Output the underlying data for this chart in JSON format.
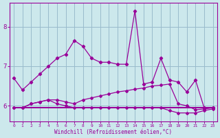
{
  "x": [
    0,
    1,
    2,
    3,
    4,
    5,
    6,
    7,
    8,
    9,
    10,
    11,
    12,
    13,
    14,
    15,
    16,
    17,
    18,
    19,
    20,
    21,
    22,
    23
  ],
  "line1": [
    6.7,
    6.4,
    6.6,
    6.8,
    7.0,
    7.2,
    7.3,
    7.65,
    7.5,
    7.2,
    7.1,
    7.1,
    7.05,
    7.05,
    8.4,
    6.55,
    6.6,
    7.2,
    6.65,
    6.6,
    6.35,
    6.65,
    5.95,
    5.95
  ],
  "line2": [
    5.95,
    5.95,
    6.05,
    6.1,
    6.15,
    6.15,
    6.1,
    6.05,
    6.15,
    6.2,
    6.25,
    6.3,
    6.35,
    6.38,
    6.42,
    6.45,
    6.5,
    6.52,
    6.55,
    6.05,
    6.0,
    5.9,
    5.92,
    5.95
  ],
  "line3": [
    5.95,
    5.95,
    5.95,
    5.95,
    5.95,
    5.95,
    5.95,
    5.95,
    5.95,
    5.95,
    5.95,
    5.95,
    5.95,
    5.95,
    5.95,
    5.95,
    5.95,
    5.95,
    5.95,
    5.95,
    5.95,
    5.95,
    5.95,
    5.95
  ],
  "line4": [
    5.95,
    5.95,
    6.05,
    6.1,
    6.15,
    6.05,
    6.0,
    5.95,
    5.95,
    5.95,
    5.95,
    5.95,
    5.95,
    5.95,
    5.95,
    5.95,
    5.95,
    5.95,
    5.88,
    5.82,
    5.82,
    5.82,
    5.88,
    5.92
  ],
  "ylim": [
    5.6,
    8.6
  ],
  "yticks": [
    6,
    7,
    8
  ],
  "bg_color": "#cce8ec",
  "line_color": "#990099",
  "grid_color": "#99bbcc",
  "xlabel": "Windchill (Refroidissement éolien,°C)"
}
